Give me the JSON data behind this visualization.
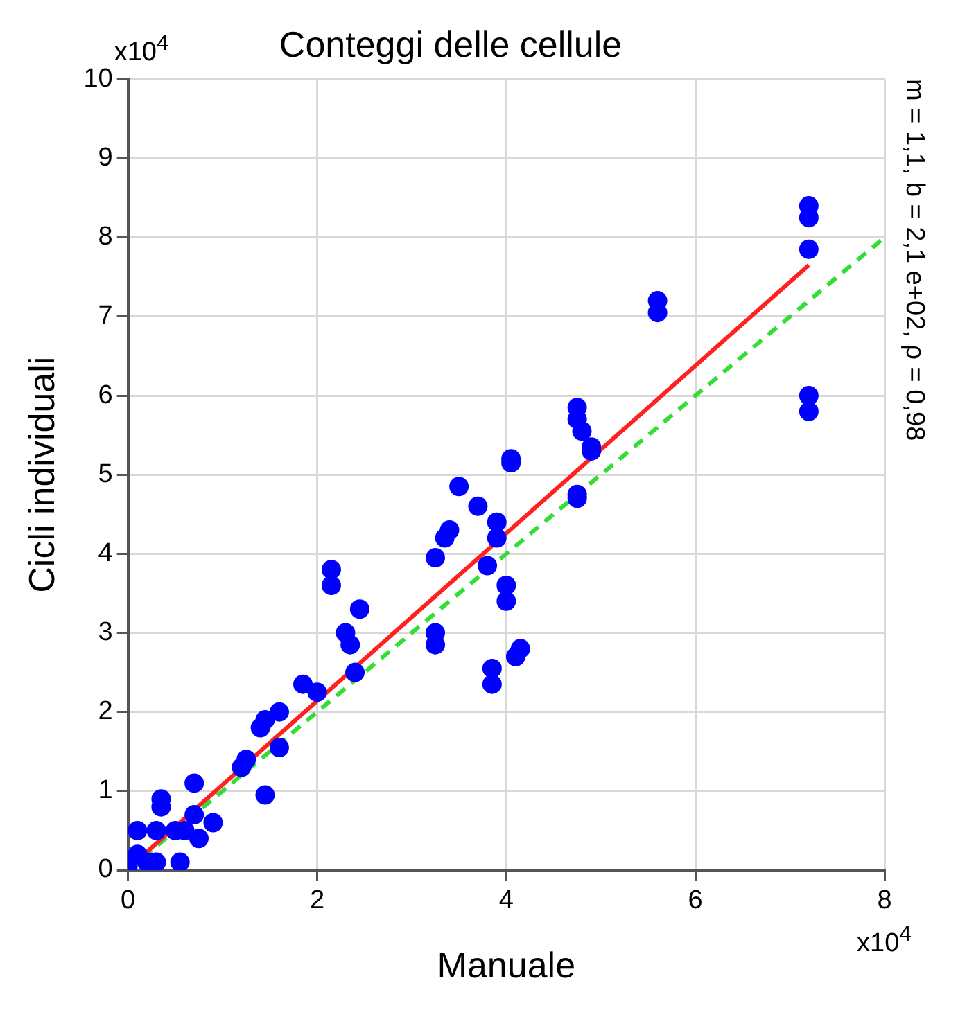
{
  "chart_data": {
    "type": "scatter",
    "title": "Conteggi delle cellule",
    "xlabel": "Manuale",
    "ylabel": "Cicli individuali",
    "annotations": [
      "x10$^{4}$",
      "x10$^{4}$",
      "m = 1,1, b = 2,1 e+02, ρ = 0,98"
    ],
    "xlim": [
      0,
      8
    ],
    "xticks": [
      0,
      2,
      4,
      6,
      8
    ],
    "ylim": [
      0,
      10
    ],
    "yticks": [
      0,
      1,
      2,
      3,
      4,
      5,
      6,
      7,
      8,
      9,
      10
    ],
    "grid": true,
    "legend": false,
    "series": [
      {
        "marker": "circle",
        "color": "#0000ff",
        "x": [
          0,
          0.1,
          0.1,
          0.2,
          0.3,
          0.3,
          0.35,
          0.35,
          0.55,
          0.5,
          0.6,
          0.7,
          0.7,
          0.75,
          0.9,
          1.2,
          1.25,
          1.4,
          1.45,
          1.45,
          1.6,
          1.6,
          1.85,
          2.0,
          2.15,
          2.15,
          2.3,
          2.35,
          2.4,
          2.45,
          3.25,
          3.25,
          3.25,
          3.35,
          3.4,
          3.5,
          3.7,
          3.8,
          3.85,
          3.85,
          3.9,
          3.9,
          4.0,
          4.0,
          4.05,
          4.05,
          4.1,
          4.15,
          4.75,
          4.75,
          4.8,
          4.75,
          4.75,
          4.9,
          4.9,
          5.6,
          5.6,
          7.2,
          7.2,
          7.2,
          7.2,
          7.2
        ],
        "values": [
          0.05,
          0.5,
          0.2,
          0.1,
          0.1,
          0.5,
          0.8,
          0.9,
          0.1,
          0.5,
          0.5,
          0.7,
          1.1,
          0.4,
          0.6,
          1.3,
          1.4,
          1.8,
          1.9,
          0.95,
          1.55,
          2.0,
          2.35,
          2.25,
          3.6,
          3.8,
          3.0,
          2.85,
          2.5,
          3.3,
          2.85,
          3.0,
          3.95,
          4.2,
          4.3,
          4.85,
          4.6,
          3.85,
          2.35,
          2.55,
          4.4,
          4.2,
          3.4,
          3.6,
          5.15,
          5.2,
          2.7,
          2.8,
          5.85,
          5.7,
          5.55,
          4.75,
          4.7,
          5.35,
          5.3,
          7.2,
          7.05,
          8.4,
          8.25,
          7.85,
          6.0,
          5.8
        ]
      },
      {
        "type": "line",
        "marker": "none",
        "color": "#ff2020",
        "x": [
          0,
          7.2
        ],
        "values": [
          0.02,
          7.65
        ]
      },
      {
        "type": "line",
        "marker": "none",
        "color": "#33dd33",
        "line_style": "dashed",
        "x": [
          0,
          8
        ],
        "values": [
          0,
          8
        ]
      }
    ]
  }
}
